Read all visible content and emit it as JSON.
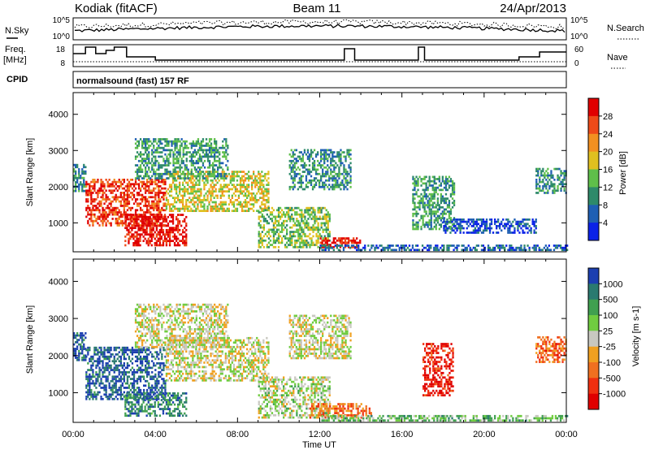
{
  "header": {
    "station": "Kodiak (fitACF)",
    "beam": "Beam 11",
    "date": "24/Apr/2013"
  },
  "top_strips": {
    "nsky_label": "N.Sky",
    "nsearch_label": "N.Search",
    "nsky_ticks": [
      "10^5",
      "10^0"
    ],
    "nsearch_ticks": [
      "10^5",
      "10^0"
    ],
    "freq_label_1": "Freq.",
    "freq_label_2": "[MHz]",
    "freq_ticks": [
      "18",
      "8"
    ],
    "nave_label": "Nave",
    "nave_ticks": [
      "60",
      "0"
    ],
    "cpid_label": "CPID",
    "cpid_text": "normalsound (fast) 157 RF"
  },
  "x_axis": {
    "label": "Time UT",
    "ticks": [
      "00:00",
      "04:00",
      "08:00",
      "12:00",
      "16:00",
      "20:00",
      "00:00"
    ]
  },
  "chart_data": [
    {
      "type": "heatmap",
      "name": "power",
      "ylabel": "Slant Range [km]",
      "yticks": [
        "1000",
        "2000",
        "3000",
        "4000"
      ],
      "ylim": [
        200,
        4600
      ],
      "xlim": [
        0,
        24
      ],
      "colorbar_label": "Power [dB]",
      "colorbar_ticks": [
        "4",
        "8",
        "12",
        "16",
        "20",
        "24",
        "28"
      ],
      "colorbar_colors": [
        "#0b22e8",
        "#1f5fb4",
        "#2e8a6a",
        "#5fbf4a",
        "#e0c020",
        "#f29020",
        "#ee4a18",
        "#e00000"
      ],
      "features": [
        {
          "t0": 0.0,
          "t1": 0.6,
          "r0": 1850,
          "r1": 2600,
          "level": 0.3
        },
        {
          "t0": 0.6,
          "t1": 4.5,
          "r0": 900,
          "r1": 2200,
          "level": 0.85
        },
        {
          "t0": 2.5,
          "t1": 5.5,
          "r0": 350,
          "r1": 1200,
          "level": 0.95
        },
        {
          "t0": 4.5,
          "t1": 9.5,
          "r0": 1300,
          "r1": 2400,
          "level": 0.55
        },
        {
          "t0": 3.0,
          "t1": 7.5,
          "r0": 2200,
          "r1": 3300,
          "level": 0.35
        },
        {
          "t0": 9.0,
          "t1": 12.5,
          "r0": 300,
          "r1": 1400,
          "level": 0.45
        },
        {
          "t0": 12.0,
          "t1": 14.0,
          "r0": 300,
          "r1": 600,
          "level": 0.9
        },
        {
          "t0": 10.5,
          "t1": 13.5,
          "r0": 1900,
          "r1": 3000,
          "level": 0.3
        },
        {
          "t0": 16.5,
          "t1": 18.5,
          "r0": 800,
          "r1": 2300,
          "level": 0.35
        },
        {
          "t0": 18.0,
          "t1": 22.5,
          "r0": 700,
          "r1": 1100,
          "level": 0.15
        },
        {
          "t0": 22.5,
          "t1": 24.0,
          "r0": 1800,
          "r1": 2500,
          "level": 0.3
        },
        {
          "t0": 12.0,
          "t1": 24.0,
          "r0": 220,
          "r1": 350,
          "level": 0.2
        }
      ]
    },
    {
      "type": "heatmap",
      "name": "velocity",
      "ylabel": "Slant Range [km]",
      "yticks": [
        "1000",
        "2000",
        "3000",
        "4000"
      ],
      "ylim": [
        200,
        4600
      ],
      "xlim": [
        0,
        24
      ],
      "colorbar_label": "Velocity [m s-1]",
      "colorbar_ticks": [
        "1000",
        "500",
        "100",
        "25",
        "-25",
        "-100",
        "-500",
        "-1000"
      ],
      "colorbar_colors": [
        "#1c3fb0",
        "#2a7a70",
        "#40a050",
        "#70cc40",
        "#c8c8c0",
        "#f0a020",
        "#f07020",
        "#f03010",
        "#e00000"
      ],
      "features": [
        {
          "t0": 0.0,
          "t1": 0.6,
          "r0": 1850,
          "r1": 2600,
          "level": 0.1
        },
        {
          "t0": 0.6,
          "t1": 4.5,
          "r0": 800,
          "r1": 2200,
          "level": 0.1
        },
        {
          "t0": 2.5,
          "t1": 5.5,
          "r0": 350,
          "r1": 1000,
          "level": 0.2
        },
        {
          "t0": 4.5,
          "t1": 9.5,
          "r0": 1300,
          "r1": 2500,
          "level": 0.5
        },
        {
          "t0": 3.0,
          "t1": 7.5,
          "r0": 2200,
          "r1": 3400,
          "level": 0.5
        },
        {
          "t0": 9.0,
          "t1": 12.5,
          "r0": 300,
          "r1": 1400,
          "level": 0.45
        },
        {
          "t0": 11.5,
          "t1": 14.5,
          "r0": 300,
          "r1": 700,
          "level": 0.7
        },
        {
          "t0": 10.5,
          "t1": 13.5,
          "r0": 1900,
          "r1": 3100,
          "level": 0.5
        },
        {
          "t0": 17.0,
          "t1": 18.5,
          "r0": 900,
          "r1": 2300,
          "level": 0.9
        },
        {
          "t0": 22.5,
          "t1": 24.0,
          "r0": 1800,
          "r1": 2500,
          "level": 0.75
        },
        {
          "t0": 12.0,
          "t1": 24.0,
          "r0": 220,
          "r1": 350,
          "level": 0.35
        }
      ]
    }
  ]
}
